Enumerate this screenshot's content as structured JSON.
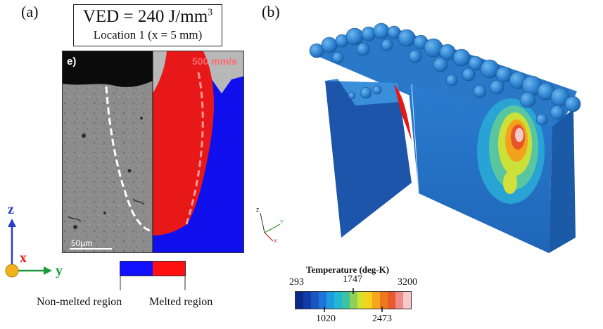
{
  "panel_a": {
    "label": "(a)",
    "title": "VED = 240 J/mm",
    "title_sup": "3",
    "subtitle": "Location 1 (x = 5 mm)",
    "sub_label": "e)",
    "speed_label": "500 mm/s",
    "scale_bar": "50µm",
    "legend": {
      "non_melted": "Non-melted region",
      "melted": "Melted region",
      "non_melted_color": "#1010ff",
      "melted_color": "#ff1010"
    },
    "axes": {
      "z": "z",
      "x": "x",
      "y": "y"
    }
  },
  "panel_b": {
    "label": "(b)",
    "triad": {
      "z": "Z",
      "y": "Y",
      "x": "X"
    },
    "colorbar": {
      "title": "Temperature (deg-K)",
      "top_ticks": [
        "293",
        "1747",
        "3200"
      ],
      "bottom_ticks": [
        "1020",
        "2473"
      ],
      "colors": [
        "#0a2a8a",
        "#103ca8",
        "#1b55c4",
        "#1e75d8",
        "#1f9be0",
        "#22b8d2",
        "#3cc3a0",
        "#8fd05a",
        "#d7e02c",
        "#f6d21c",
        "#f7a51c",
        "#f0781c",
        "#e85a2a",
        "#ef8a8a",
        "#f8c9c9"
      ]
    }
  }
}
